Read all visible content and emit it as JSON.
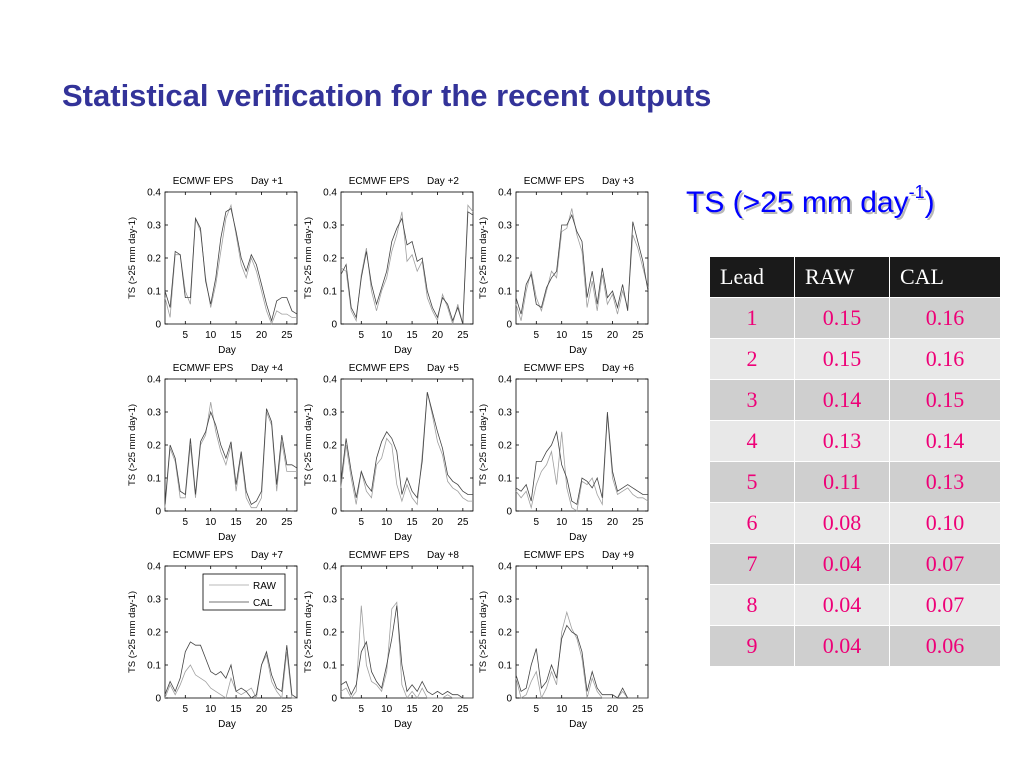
{
  "slide": {
    "title": "Statistical verification for the recent outputs",
    "ts_heading": {
      "text": "TS (>25 mm day",
      "sup": "-1",
      "close": ")"
    }
  },
  "table": {
    "headers": [
      "Lead",
      "RAW",
      "CAL"
    ],
    "rows": [
      [
        "1",
        "0.15",
        "0.16"
      ],
      [
        "2",
        "0.15",
        "0.16"
      ],
      [
        "3",
        "0.14",
        "0.15"
      ],
      [
        "4",
        "0.13",
        "0.14"
      ],
      [
        "5",
        "0.11",
        "0.13"
      ],
      [
        "6",
        "0.08",
        "0.10"
      ],
      [
        "7",
        "0.04",
        "0.07"
      ],
      [
        "8",
        "0.04",
        "0.07"
      ],
      [
        "9",
        "0.04",
        "0.06"
      ]
    ]
  },
  "colors": {
    "title": "#333399",
    "ts_heading": "#0000ff",
    "table_values": "#ee0077",
    "table_header_bg": "#1a1a1a",
    "raw_line": "#a0a0a0",
    "cal_line": "#444444"
  },
  "chart_data": [
    {
      "type": "line",
      "title_left": "ECMWF EPS",
      "title_right": "Day +1",
      "xlabel": "Day",
      "ylabel": "TS (>25 mm day-1)",
      "xlim": [
        1,
        27
      ],
      "ylim": [
        0,
        0.4
      ],
      "xticks": [
        5,
        10,
        15,
        20,
        25
      ],
      "yticks": [
        "0",
        "0.1",
        "0.2",
        "0.3",
        "0.4"
      ],
      "x": [
        1,
        2,
        3,
        4,
        5,
        6,
        7,
        8,
        9,
        10,
        11,
        12,
        13,
        14,
        15,
        16,
        17,
        18,
        19,
        20,
        21,
        22,
        23,
        24,
        25,
        26,
        27
      ],
      "series": [
        {
          "name": "RAW",
          "values": [
            0.08,
            0.02,
            0.21,
            0.21,
            0.1,
            0.06,
            0.32,
            0.28,
            0.14,
            0.05,
            0.12,
            0.22,
            0.32,
            0.36,
            0.27,
            0.18,
            0.14,
            0.2,
            0.16,
            0.1,
            0.04,
            0.0,
            0.04,
            0.03,
            0.03,
            0.02,
            0.02
          ]
        },
        {
          "name": "CAL",
          "values": [
            0.1,
            0.05,
            0.22,
            0.21,
            0.08,
            0.08,
            0.32,
            0.29,
            0.13,
            0.06,
            0.14,
            0.26,
            0.34,
            0.35,
            0.28,
            0.2,
            0.16,
            0.21,
            0.18,
            0.12,
            0.06,
            0.01,
            0.07,
            0.08,
            0.08,
            0.04,
            0.03
          ]
        }
      ]
    },
    {
      "type": "line",
      "title_left": "ECMWF EPS",
      "title_right": "Day +2",
      "xlabel": "Day",
      "ylabel": "TS (>25 mm day-1)",
      "xlim": [
        1,
        27
      ],
      "ylim": [
        0,
        0.4
      ],
      "xticks": [
        5,
        10,
        15,
        20,
        25
      ],
      "yticks": [
        "0",
        "0.1",
        "0.2",
        "0.3",
        "0.4"
      ],
      "x": [
        1,
        2,
        3,
        4,
        5,
        6,
        7,
        8,
        9,
        10,
        11,
        12,
        13,
        14,
        15,
        16,
        17,
        18,
        19,
        20,
        21,
        22,
        23,
        24,
        25,
        26,
        27
      ],
      "series": [
        {
          "name": "RAW",
          "values": [
            0.17,
            0.16,
            0.04,
            0.01,
            0.15,
            0.23,
            0.1,
            0.04,
            0.1,
            0.14,
            0.22,
            0.27,
            0.34,
            0.19,
            0.21,
            0.16,
            0.19,
            0.08,
            0.04,
            0.01,
            0.09,
            0.05,
            0.0,
            0.06,
            0.0,
            0.36,
            0.34
          ]
        },
        {
          "name": "CAL",
          "values": [
            0.15,
            0.18,
            0.05,
            0.02,
            0.14,
            0.22,
            0.12,
            0.06,
            0.11,
            0.16,
            0.25,
            0.29,
            0.32,
            0.24,
            0.25,
            0.19,
            0.2,
            0.1,
            0.05,
            0.02,
            0.08,
            0.06,
            0.01,
            0.05,
            0.0,
            0.34,
            0.33
          ]
        }
      ]
    },
    {
      "type": "line",
      "title_left": "ECMWF EPS",
      "title_right": "Day +3",
      "xlabel": "Day",
      "ylabel": "TS (>25 mm day-1)",
      "xlim": [
        1,
        27
      ],
      "ylim": [
        0,
        0.4
      ],
      "xticks": [
        5,
        10,
        15,
        20,
        25
      ],
      "yticks": [
        "0",
        "0.1",
        "0.2",
        "0.3",
        "0.4"
      ],
      "x": [
        1,
        2,
        3,
        4,
        5,
        6,
        7,
        8,
        9,
        10,
        11,
        12,
        13,
        14,
        15,
        16,
        17,
        18,
        19,
        20,
        21,
        22,
        23,
        24,
        25,
        26,
        27
      ],
      "series": [
        {
          "name": "RAW",
          "values": [
            0.06,
            0.01,
            0.1,
            0.16,
            0.08,
            0.04,
            0.1,
            0.16,
            0.14,
            0.28,
            0.29,
            0.35,
            0.27,
            0.22,
            0.05,
            0.13,
            0.04,
            0.15,
            0.06,
            0.09,
            0.03,
            0.1,
            0.05,
            0.27,
            0.23,
            0.17,
            0.11
          ]
        },
        {
          "name": "CAL",
          "values": [
            0.08,
            0.03,
            0.12,
            0.15,
            0.06,
            0.05,
            0.11,
            0.14,
            0.16,
            0.3,
            0.3,
            0.33,
            0.28,
            0.25,
            0.08,
            0.16,
            0.06,
            0.17,
            0.08,
            0.1,
            0.05,
            0.12,
            0.04,
            0.31,
            0.25,
            0.19,
            0.1
          ]
        }
      ]
    },
    {
      "type": "line",
      "title_left": "ECMWF EPS",
      "title_right": "Day +4",
      "xlabel": "Day",
      "ylabel": "TS (>25 mm day-1)",
      "xlim": [
        1,
        27
      ],
      "ylim": [
        0,
        0.4
      ],
      "xticks": [
        5,
        10,
        15,
        20,
        25
      ],
      "yticks": [
        "0",
        "0.1",
        "0.2",
        "0.3",
        "0.4"
      ],
      "x": [
        1,
        2,
        3,
        4,
        5,
        6,
        7,
        8,
        9,
        10,
        11,
        12,
        13,
        14,
        15,
        16,
        17,
        18,
        19,
        20,
        21,
        22,
        23,
        24,
        25,
        26,
        27
      ],
      "series": [
        {
          "name": "RAW",
          "values": [
            0.01,
            0.19,
            0.15,
            0.04,
            0.04,
            0.2,
            0.04,
            0.2,
            0.23,
            0.33,
            0.24,
            0.18,
            0.14,
            0.2,
            0.06,
            0.17,
            0.04,
            0.01,
            0.01,
            0.04,
            0.3,
            0.26,
            0.06,
            0.21,
            0.12,
            0.12,
            0.12
          ]
        },
        {
          "name": "CAL",
          "values": [
            0.02,
            0.2,
            0.16,
            0.06,
            0.05,
            0.22,
            0.05,
            0.21,
            0.24,
            0.3,
            0.26,
            0.2,
            0.16,
            0.21,
            0.08,
            0.18,
            0.06,
            0.02,
            0.03,
            0.06,
            0.31,
            0.27,
            0.08,
            0.23,
            0.14,
            0.14,
            0.13
          ]
        }
      ]
    },
    {
      "type": "line",
      "title_left": "ECMWF EPS",
      "title_right": "Day +5",
      "xlabel": "Day",
      "ylabel": "TS (>25 mm day-1)",
      "xlim": [
        1,
        27
      ],
      "ylim": [
        0,
        0.4
      ],
      "xticks": [
        5,
        10,
        15,
        20,
        25
      ],
      "yticks": [
        "0",
        "0.1",
        "0.2",
        "0.3",
        "0.4"
      ],
      "x": [
        1,
        2,
        3,
        4,
        5,
        6,
        7,
        8,
        9,
        10,
        11,
        12,
        13,
        14,
        15,
        16,
        17,
        18,
        19,
        20,
        21,
        22,
        23,
        24,
        25,
        26,
        27
      ],
      "series": [
        {
          "name": "RAW",
          "values": [
            0.07,
            0.2,
            0.1,
            0.02,
            0.12,
            0.06,
            0.04,
            0.14,
            0.16,
            0.22,
            0.2,
            0.08,
            0.03,
            0.08,
            0.04,
            0.02,
            0.17,
            0.36,
            0.29,
            0.21,
            0.17,
            0.09,
            0.07,
            0.06,
            0.04,
            0.03,
            0.03
          ]
        },
        {
          "name": "CAL",
          "values": [
            0.09,
            0.22,
            0.12,
            0.04,
            0.12,
            0.08,
            0.06,
            0.16,
            0.21,
            0.24,
            0.22,
            0.18,
            0.05,
            0.1,
            0.06,
            0.04,
            0.15,
            0.36,
            0.3,
            0.24,
            0.19,
            0.11,
            0.09,
            0.08,
            0.06,
            0.05,
            0.05
          ]
        }
      ]
    },
    {
      "type": "line",
      "title_left": "ECMWF EPS",
      "title_right": "Day +6",
      "xlabel": "Day",
      "ylabel": "TS (>25 mm day-1)",
      "xlim": [
        1,
        27
      ],
      "ylim": [
        0,
        0.4
      ],
      "xticks": [
        5,
        10,
        15,
        20,
        25
      ],
      "yticks": [
        "0",
        "0.1",
        "0.2",
        "0.3",
        "0.4"
      ],
      "x": [
        1,
        2,
        3,
        4,
        5,
        6,
        7,
        8,
        9,
        10,
        11,
        12,
        13,
        14,
        15,
        16,
        17,
        18,
        19,
        20,
        21,
        22,
        23,
        24,
        25,
        26,
        27
      ],
      "series": [
        {
          "name": "RAW",
          "values": [
            0.06,
            0.04,
            0.06,
            0.01,
            0.08,
            0.12,
            0.14,
            0.18,
            0.08,
            0.24,
            0.07,
            0.01,
            0.0,
            0.09,
            0.08,
            0.1,
            0.05,
            0.02,
            0.29,
            0.1,
            0.05,
            0.06,
            0.07,
            0.05,
            0.04,
            0.04,
            0.03
          ]
        },
        {
          "name": "CAL",
          "values": [
            0.07,
            0.06,
            0.08,
            0.03,
            0.15,
            0.15,
            0.18,
            0.2,
            0.24,
            0.14,
            0.1,
            0.03,
            0.02,
            0.1,
            0.09,
            0.07,
            0.1,
            0.04,
            0.3,
            0.12,
            0.06,
            0.07,
            0.08,
            0.07,
            0.06,
            0.05,
            0.05
          ]
        }
      ]
    },
    {
      "type": "line",
      "title_left": "ECMWF EPS",
      "title_right": "Day +7",
      "xlabel": "Day",
      "ylabel": "TS (>25 mm day-1)",
      "xlim": [
        1,
        27
      ],
      "ylim": [
        0,
        0.4
      ],
      "xticks": [
        5,
        10,
        15,
        20,
        25
      ],
      "yticks": [
        "0",
        "0.1",
        "0.2",
        "0.3",
        "0.4"
      ],
      "legend": {
        "position": "top-left",
        "entries": [
          "RAW",
          "CAL"
        ]
      },
      "x": [
        1,
        2,
        3,
        4,
        5,
        6,
        7,
        8,
        9,
        10,
        11,
        12,
        13,
        14,
        15,
        16,
        17,
        18,
        19,
        20,
        21,
        22,
        23,
        24,
        25,
        26,
        27
      ],
      "series": [
        {
          "name": "RAW",
          "values": [
            0.0,
            0.04,
            0.01,
            0.04,
            0.08,
            0.1,
            0.07,
            0.06,
            0.05,
            0.03,
            0.02,
            0.01,
            0.0,
            0.06,
            0.02,
            0.01,
            0.02,
            0.03,
            0.0,
            0.1,
            0.13,
            0.05,
            0.02,
            0.0,
            0.14,
            0.0,
            0.0
          ]
        },
        {
          "name": "CAL",
          "values": [
            0.01,
            0.05,
            0.02,
            0.06,
            0.14,
            0.17,
            0.16,
            0.16,
            0.12,
            0.08,
            0.07,
            0.08,
            0.06,
            0.1,
            0.02,
            0.03,
            0.02,
            0.0,
            0.01,
            0.1,
            0.14,
            0.07,
            0.03,
            0.02,
            0.16,
            0.01,
            0.0
          ]
        }
      ]
    },
    {
      "type": "line",
      "title_left": "ECMWF EPS",
      "title_right": "Day +8",
      "xlabel": "Day",
      "ylabel": "TS (>25 mm day-1)",
      "xlim": [
        1,
        27
      ],
      "ylim": [
        0,
        0.4
      ],
      "xticks": [
        5,
        10,
        15,
        20,
        25
      ],
      "yticks": [
        "0",
        "0.1",
        "0.2",
        "0.3",
        "0.4"
      ],
      "x": [
        1,
        2,
        3,
        4,
        5,
        6,
        7,
        8,
        9,
        10,
        11,
        12,
        13,
        14,
        15,
        16,
        17,
        18,
        19,
        20,
        21,
        22,
        23,
        24,
        25,
        26,
        27
      ],
      "series": [
        {
          "name": "RAW",
          "values": [
            0.02,
            0.03,
            0.0,
            0.02,
            0.28,
            0.1,
            0.05,
            0.04,
            0.02,
            0.08,
            0.27,
            0.29,
            0.04,
            0.0,
            0.02,
            0.0,
            0.03,
            0.0,
            0.0,
            0.0,
            0.0,
            0.01,
            0.0,
            0.0,
            0.0,
            0.0,
            0.0
          ]
        },
        {
          "name": "CAL",
          "values": [
            0.04,
            0.05,
            0.01,
            0.04,
            0.14,
            0.17,
            0.08,
            0.05,
            0.03,
            0.1,
            0.18,
            0.28,
            0.1,
            0.02,
            0.04,
            0.02,
            0.05,
            0.02,
            0.01,
            0.02,
            0.01,
            0.02,
            0.01,
            0.01,
            0.0,
            0.0,
            0.0
          ]
        }
      ]
    },
    {
      "type": "line",
      "title_left": "ECMWF EPS",
      "title_right": "Day +9",
      "xlabel": "Day",
      "ylabel": "TS (>25 mm day-1)",
      "xlim": [
        1,
        27
      ],
      "ylim": [
        0,
        0.4
      ],
      "xticks": [
        5,
        10,
        15,
        20,
        25
      ],
      "yticks": [
        "0",
        "0.1",
        "0.2",
        "0.3",
        "0.4"
      ],
      "x": [
        1,
        2,
        3,
        4,
        5,
        6,
        7,
        8,
        9,
        10,
        11,
        12,
        13,
        14,
        15,
        16,
        17,
        18,
        19,
        20,
        21,
        22,
        23,
        24,
        25,
        26,
        27
      ],
      "series": [
        {
          "name": "RAW",
          "values": [
            0.06,
            0.0,
            0.01,
            0.05,
            0.08,
            0.0,
            0.03,
            0.08,
            0.04,
            0.2,
            0.26,
            0.21,
            0.18,
            0.12,
            0.0,
            0.06,
            0.02,
            0.0,
            0.0,
            0.0,
            0.0,
            0.02,
            0.0,
            0.0,
            0.0,
            0.0,
            0.0
          ]
        },
        {
          "name": "CAL",
          "values": [
            0.07,
            0.02,
            0.03,
            0.1,
            0.15,
            0.03,
            0.05,
            0.1,
            0.06,
            0.18,
            0.22,
            0.2,
            0.19,
            0.14,
            0.02,
            0.08,
            0.03,
            0.01,
            0.01,
            0.01,
            0.0,
            0.03,
            0.0,
            0.0,
            0.0,
            0.0,
            0.0
          ]
        }
      ]
    }
  ]
}
